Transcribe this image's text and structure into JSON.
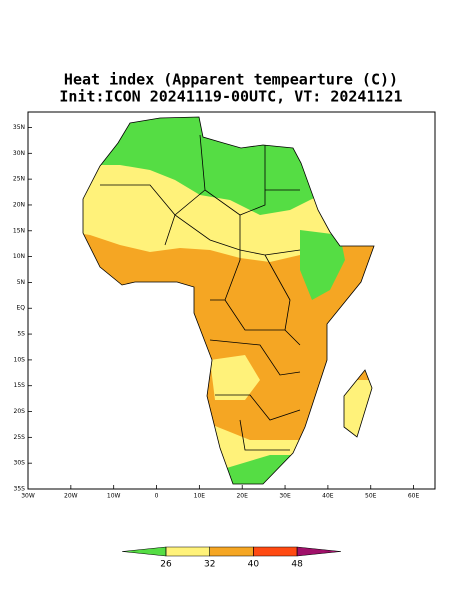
{
  "chart_data": {
    "type": "map",
    "title": "Heat index (Apparent tempearture (C))",
    "subtitle": "Init:ICON 20241119-00UTC, VT: 20241121",
    "xlim": [
      -30,
      65
    ],
    "ylim": [
      -35,
      38
    ],
    "xticks": [
      {
        "value": -30,
        "label": "30W"
      },
      {
        "value": -20,
        "label": "20W"
      },
      {
        "value": -10,
        "label": "10W"
      },
      0,
      {
        "value": 10,
        "label": "10E"
      },
      {
        "value": 20,
        "label": "20E"
      },
      {
        "value": 30,
        "label": "30E"
      },
      {
        "value": 40,
        "label": "40E"
      },
      {
        "value": 50,
        "label": "50E"
      },
      {
        "value": 60,
        "label": "60E"
      }
    ],
    "yticks": [
      {
        "value": -35,
        "label": "35S"
      },
      {
        "value": -30,
        "label": "30S"
      },
      {
        "value": -25,
        "label": "25S"
      },
      {
        "value": -20,
        "label": "20S"
      },
      {
        "value": -15,
        "label": "15S"
      },
      {
        "value": -10,
        "label": "10S"
      },
      {
        "value": -5,
        "label": "5S"
      },
      {
        "value": 0,
        "label": "EQ"
      },
      {
        "value": 5,
        "label": "5N"
      },
      {
        "value": 10,
        "label": "10N"
      },
      {
        "value": 15,
        "label": "15N"
      },
      {
        "value": 20,
        "label": "20N"
      },
      {
        "value": 25,
        "label": "25N"
      },
      {
        "value": 30,
        "label": "30N"
      },
      {
        "value": 35,
        "label": "35N"
      }
    ],
    "colorbar": {
      "levels": [
        26,
        32,
        40,
        48
      ],
      "colors": [
        "#55dd44",
        "#fff27a",
        "#f5a623",
        "#ff4a12",
        "#a0106a"
      ]
    }
  }
}
